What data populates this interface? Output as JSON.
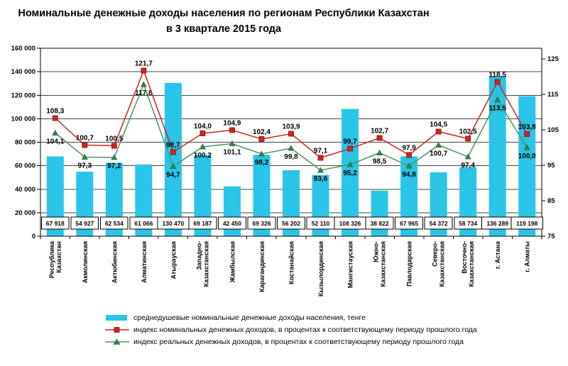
{
  "title": {
    "line1": "Номинальные денежные доходы населения по регионам Республики Казахстан",
    "line2": "в 3 квартале 2015 года"
  },
  "chart_data": {
    "type": "bar",
    "subtype": "combo-bar-two-lines",
    "title": "Номинальные денежные доходы населения по регионам Республики Казахстан в 3 квартале 2015 года",
    "categories": [
      "Республика Казахстан",
      "Акмолинская",
      "Актюбинская",
      "Алматинская",
      "Атырауская",
      "Западно-Казахстанская",
      "Жамбылская",
      "Карагандинская",
      "Костанайская",
      "Кызылординская",
      "Мангистауская",
      "Южно-Казахстанская",
      "Павлодарская",
      "Северо-Казахстанская",
      "Восточно-Казахстанская",
      "г. Астана",
      "г. Алматы"
    ],
    "category_lines": [
      [
        "Республика",
        "Казахстан"
      ],
      [
        "Акмолинская"
      ],
      [
        "Актюбинская"
      ],
      [
        "Алматинская"
      ],
      [
        "Атырауская"
      ],
      [
        "Западно-",
        "Казахстанская"
      ],
      [
        "Жамбылская"
      ],
      [
        "Карагандинская"
      ],
      [
        "Костанайская"
      ],
      [
        "Кызылординская"
      ],
      [
        "Мангистауская"
      ],
      [
        "Южно-",
        "Казахстанская"
      ],
      [
        "Павлодарская"
      ],
      [
        "Северо-",
        "Казахстанская"
      ],
      [
        "Восточно-",
        "Казахстанская"
      ],
      [
        "г. Астана"
      ],
      [
        "г. Алматы"
      ]
    ],
    "series": [
      {
        "name": "среднедушевые номинальные денежные доходы населения, тенге",
        "type": "bar",
        "axis": "left",
        "color": "#29c4e8",
        "values": [
          67918,
          54927,
          62534,
          61066,
          130470,
          69187,
          42450,
          69326,
          56202,
          52110,
          108326,
          38822,
          67965,
          54372,
          58734,
          136289,
          119198
        ],
        "labels": [
          "67 918",
          "54 927",
          "62 534",
          "61 066",
          "130 470",
          "69 187",
          "42 450",
          "69 326",
          "56 202",
          "52 110",
          "108 326",
          "38 822",
          "67 965",
          "54 372",
          "58 734",
          "136 289",
          "119 198"
        ]
      },
      {
        "name": "индекс номинальных денежных доходов, в процентах к соответствующему  периоду прошлого года",
        "type": "line",
        "marker": "square",
        "axis": "right",
        "color": "#d32222",
        "values": [
          108.3,
          100.7,
          100.5,
          121.7,
          98.7,
          104.0,
          104.9,
          102.4,
          103.9,
          97.1,
          99.7,
          102.7,
          97.9,
          104.5,
          102.5,
          118.5,
          103.8
        ],
        "labels": [
          "108,3",
          "100,7",
          "100,5",
          "121,7",
          "98,7",
          "104,0",
          "104,9",
          "102,4",
          "103,9",
          "97,1",
          "99,7",
          "102,7",
          "97,9",
          "104,5",
          "102,5",
          "118,5",
          "103,8"
        ]
      },
      {
        "name": "индекс реальных денежных доходов, в процентах к соответствующему  периоду прошлого года",
        "type": "line",
        "marker": "triangle",
        "axis": "right",
        "color": "#4a9560",
        "values": [
          104.1,
          97.3,
          97.2,
          117.8,
          94.7,
          100.2,
          101.1,
          98.2,
          99.8,
          93.6,
          95.2,
          98.5,
          94.8,
          100.7,
          97.4,
          113.5,
          100.0
        ],
        "labels": [
          "104,1",
          "97,3",
          "97,2",
          "117,8",
          "94,7",
          "100,2",
          "101,1",
          "98,2",
          "99,8",
          "93,6",
          "95,2",
          "98,5",
          "94,8",
          "100,7",
          "97,4",
          "113,5",
          "100,0"
        ]
      }
    ],
    "left_axis": {
      "min": 0,
      "max": 160000,
      "step": 20000,
      "tick_labels": [
        "0",
        "20 000",
        "40 000",
        "60 000",
        "80 000",
        "100 000",
        "120 000",
        "140 000",
        "160 000"
      ]
    },
    "right_axis": {
      "min": 75,
      "max": 125,
      "step": 10,
      "tick_labels": [
        "75",
        "85",
        "95",
        "105",
        "115",
        "125"
      ]
    },
    "grid": true,
    "legend_position": "bottom"
  }
}
